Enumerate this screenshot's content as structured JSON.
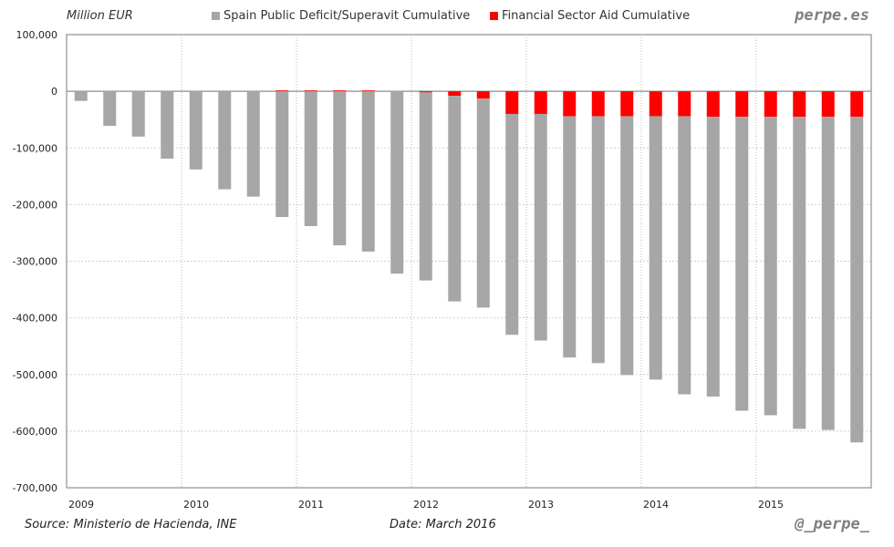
{
  "header": {
    "unit_label": "Million EUR",
    "brand": "perpe.es"
  },
  "footer": {
    "source": "Source: Ministerio de Hacienda, INE",
    "date": "Date: March 2016",
    "handle": "@_perpe_"
  },
  "chart_data": {
    "type": "bar",
    "stacked": true,
    "title": "",
    "xlabel": "",
    "ylabel": "Million EUR",
    "ylim": [
      -700000,
      100000
    ],
    "y_ticks": [
      100000,
      0,
      -100000,
      -200000,
      -300000,
      -400000,
      -500000,
      -600000,
      -700000
    ],
    "y_tick_labels": [
      "100,000",
      "0",
      "-100,000",
      "-200,000",
      "-300,000",
      "-400,000",
      "-500,000",
      "-600,000",
      "-700,000"
    ],
    "x_tick_labels": [
      "2009",
      "2010",
      "2011",
      "2012",
      "2013",
      "2014",
      "2015"
    ],
    "periods_per_year": 4,
    "grid": true,
    "legend_position": "top",
    "categories": [
      "2009Q1",
      "2009Q2",
      "2009Q3",
      "2009Q4",
      "2010Q1",
      "2010Q2",
      "2010Q3",
      "2010Q4",
      "2011Q1",
      "2011Q2",
      "2011Q3",
      "2011Q4",
      "2012Q1",
      "2012Q2",
      "2012Q3",
      "2012Q4",
      "2013Q1",
      "2013Q2",
      "2013Q3",
      "2013Q4",
      "2014Q1",
      "2014Q2",
      "2014Q3",
      "2014Q4",
      "2015Q1",
      "2015Q2",
      "2015Q3",
      "2015Q4"
    ],
    "series": [
      {
        "name": "Spain Public Deficit/Superavit Cumulative",
        "color": "#a6a6a6",
        "values": [
          -17000,
          -61000,
          -80000,
          -119000,
          -138000,
          -173000,
          -186000,
          -222000,
          -238000,
          -272000,
          -283000,
          -322000,
          -332000,
          -363000,
          -369000,
          -390000,
          -400000,
          -426000,
          -436000,
          -457000,
          -465000,
          -491000,
          -494000,
          -519000,
          -527000,
          -551000,
          -553000,
          -575000
        ]
      },
      {
        "name": "Financial Sector Aid Cumulative",
        "color": "#ff0000",
        "values": [
          0,
          0,
          0,
          0,
          0,
          0,
          0,
          1500,
          1500,
          1500,
          1500,
          0,
          -2000,
          -8000,
          -13000,
          -40000,
          -40000,
          -44000,
          -44000,
          -44000,
          -44000,
          -44000,
          -45000,
          -45000,
          -45000,
          -45000,
          -45000,
          -45000
        ]
      }
    ]
  }
}
